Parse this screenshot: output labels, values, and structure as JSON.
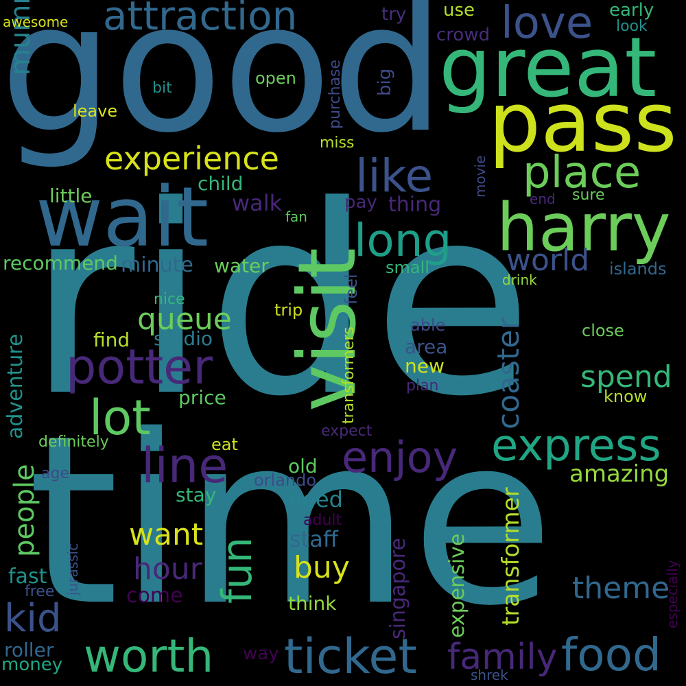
{
  "words": [
    {
      "text": "ride",
      "color": "#2a7d8e"
    },
    {
      "text": "time",
      "color": "#2a7d8e"
    },
    {
      "text": "good",
      "color": "#31688e"
    },
    {
      "text": "great",
      "color": "#35b779"
    },
    {
      "text": "pass",
      "color": "#cde11d"
    },
    {
      "text": "wait",
      "color": "#31688e"
    },
    {
      "text": "visit",
      "color": "#5ec962"
    },
    {
      "text": "harry",
      "color": "#6ccd5a"
    },
    {
      "text": "attraction",
      "color": "#31688e"
    },
    {
      "text": "love",
      "color": "#3b528b"
    },
    {
      "text": "mummy",
      "color": "#26828e"
    },
    {
      "text": "experience",
      "color": "#d8e219"
    },
    {
      "text": "like",
      "color": "#3b528b"
    },
    {
      "text": "place",
      "color": "#6ccd5a"
    },
    {
      "text": "long",
      "color": "#1f9e89"
    },
    {
      "text": "world",
      "color": "#3b528b"
    },
    {
      "text": "potter",
      "color": "#482878"
    },
    {
      "text": "lot",
      "color": "#5ec962"
    },
    {
      "text": "line",
      "color": "#482878"
    },
    {
      "text": "enjoy",
      "color": "#482878"
    },
    {
      "text": "express",
      "color": "#21a685"
    },
    {
      "text": "fun",
      "color": "#35b779"
    },
    {
      "text": "queue",
      "color": "#6ccd5a"
    },
    {
      "text": "coaster",
      "color": "#31688e"
    },
    {
      "text": "spend",
      "color": "#35b779"
    },
    {
      "text": "amazing",
      "color": "#95d840"
    },
    {
      "text": "worth",
      "color": "#35b779"
    },
    {
      "text": "ticket",
      "color": "#31688e"
    },
    {
      "text": "food",
      "color": "#31688e"
    },
    {
      "text": "family",
      "color": "#482878"
    },
    {
      "text": "want",
      "color": "#d8e219"
    },
    {
      "text": "hour",
      "color": "#482878"
    },
    {
      "text": "buy",
      "color": "#d8e219"
    },
    {
      "text": "kid",
      "color": "#3b528b"
    },
    {
      "text": "theme",
      "color": "#31688e"
    },
    {
      "text": "people",
      "color": "#5ec962"
    },
    {
      "text": "adventure",
      "color": "#21918c"
    },
    {
      "text": "transformer",
      "color": "#b5de2b"
    },
    {
      "text": "expensive",
      "color": "#6ccd5a"
    },
    {
      "text": "singapore",
      "color": "#482878"
    },
    {
      "text": "recommend",
      "color": "#5ec962"
    },
    {
      "text": "minute",
      "color": "#31688e"
    },
    {
      "text": "water",
      "color": "#6ccd5a"
    },
    {
      "text": "walk",
      "color": "#482878"
    },
    {
      "text": "child",
      "color": "#35b779"
    },
    {
      "text": "little",
      "color": "#6ccd5a"
    },
    {
      "text": "thing",
      "color": "#482878"
    },
    {
      "text": "pay",
      "color": "#482878"
    },
    {
      "text": "studio",
      "color": "#2a7d8e"
    },
    {
      "text": "find",
      "color": "#b5de2b"
    },
    {
      "text": "price",
      "color": "#5ec962"
    },
    {
      "text": "area",
      "color": "#3b528b"
    },
    {
      "text": "new",
      "color": "#cde11d"
    },
    {
      "text": "old",
      "color": "#5ec962"
    },
    {
      "text": "need",
      "color": "#26828e"
    },
    {
      "text": "stay",
      "color": "#35b779"
    },
    {
      "text": "staff",
      "color": "#31688e"
    },
    {
      "text": "fast",
      "color": "#21918c"
    },
    {
      "text": "come",
      "color": "#440154"
    },
    {
      "text": "think",
      "color": "#95d840"
    },
    {
      "text": "roller",
      "color": "#31688e"
    },
    {
      "text": "money",
      "color": "#21a685"
    },
    {
      "text": "way",
      "color": "#440154"
    },
    {
      "text": "shrek",
      "color": "#3b528b"
    },
    {
      "text": "awesome",
      "color": "#d8e219"
    },
    {
      "text": "try",
      "color": "#472d7b"
    },
    {
      "text": "use",
      "color": "#b5de2b"
    },
    {
      "text": "early",
      "color": "#35b779"
    },
    {
      "text": "look",
      "color": "#21918c"
    },
    {
      "text": "crowd",
      "color": "#472d7b"
    },
    {
      "text": "bit",
      "color": "#21918c"
    },
    {
      "text": "open",
      "color": "#6ccd5a"
    },
    {
      "text": "leave",
      "color": "#d8e219"
    },
    {
      "text": "purchase",
      "color": "#3e4a89"
    },
    {
      "text": "big",
      "color": "#3e4a89"
    },
    {
      "text": "miss",
      "color": "#b5de2b"
    },
    {
      "text": "movie",
      "color": "#3e4a89"
    },
    {
      "text": "end",
      "color": "#482878"
    },
    {
      "text": "sure",
      "color": "#6ccd5a"
    },
    {
      "text": "fan",
      "color": "#5ec962"
    },
    {
      "text": "small",
      "color": "#35b779"
    },
    {
      "text": "islands",
      "color": "#31688e"
    },
    {
      "text": "drink",
      "color": "#95d840"
    },
    {
      "text": "nice",
      "color": "#35b779"
    },
    {
      "text": "feel",
      "color": "#3b528b"
    },
    {
      "text": "trip",
      "color": "#cde11d"
    },
    {
      "text": "transformers",
      "color": "#b5de2b"
    },
    {
      "text": "able",
      "color": "#3e4a89"
    },
    {
      "text": "close",
      "color": "#6ccd5a"
    },
    {
      "text": "plan",
      "color": "#482878"
    },
    {
      "text": "know",
      "color": "#b5de2b"
    },
    {
      "text": "expect",
      "color": "#482878"
    },
    {
      "text": "definitely",
      "color": "#6ccd5a"
    },
    {
      "text": "eat",
      "color": "#cde11d"
    },
    {
      "text": "age",
      "color": "#3e4a89"
    },
    {
      "text": "orlando",
      "color": "#3e4a89"
    },
    {
      "text": "adult",
      "color": "#440154"
    },
    {
      "text": "free",
      "color": "#3b528b"
    },
    {
      "text": "jurassic",
      "color": "#3b528b"
    },
    {
      "text": "especially",
      "color": "#440154"
    }
  ]
}
